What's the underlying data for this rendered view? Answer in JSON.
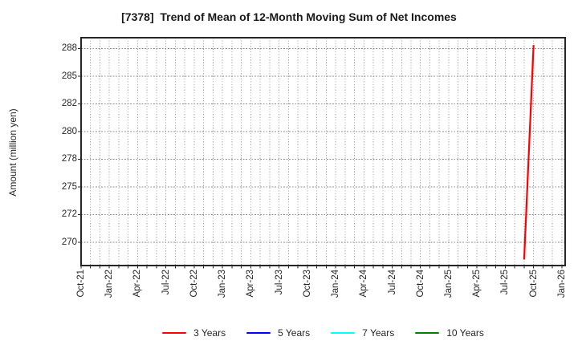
{
  "chart_data": {
    "type": "line",
    "title": "[7378]  Trend of Mean of 12-Month Moving Sum of Net Incomes",
    "ylabel": "Amount (million yen)",
    "x_unit": "months since Oct-21",
    "xlim": [
      0,
      51.35
    ],
    "ylim": [
      267.9,
      288.46
    ],
    "grid": "dotted gray, vertical minor gridline every month, horizontal at each y tick",
    "legend_position": "bottom center",
    "x_ticks": [
      {
        "month": 0,
        "label": "Oct-21"
      },
      {
        "month": 3,
        "label": "Jan-22"
      },
      {
        "month": 6,
        "label": "Apr-22"
      },
      {
        "month": 9,
        "label": "Jul-22"
      },
      {
        "month": 12,
        "label": "Oct-22"
      },
      {
        "month": 15,
        "label": "Jan-23"
      },
      {
        "month": 18,
        "label": "Apr-23"
      },
      {
        "month": 21,
        "label": "Jul-23"
      },
      {
        "month": 24,
        "label": "Oct-23"
      },
      {
        "month": 27,
        "label": "Jan-24"
      },
      {
        "month": 30,
        "label": "Apr-24"
      },
      {
        "month": 33,
        "label": "Jul-24"
      },
      {
        "month": 36,
        "label": "Oct-24"
      },
      {
        "month": 39,
        "label": "Jan-25"
      },
      {
        "month": 42,
        "label": "Apr-25"
      },
      {
        "month": 45,
        "label": "Jul-25"
      },
      {
        "month": 48,
        "label": "Oct-25"
      },
      {
        "month": 51,
        "label": "Jan-26"
      }
    ],
    "y_ticks": [
      {
        "value": 270,
        "label": "270"
      },
      {
        "value": 272.5,
        "label": "272"
      },
      {
        "value": 275,
        "label": "275"
      },
      {
        "value": 277.5,
        "label": "278"
      },
      {
        "value": 280,
        "label": "280"
      },
      {
        "value": 282.5,
        "label": "282"
      },
      {
        "value": 285,
        "label": "285"
      },
      {
        "value": 287.5,
        "label": "288"
      }
    ],
    "series": [
      {
        "name": "3 Years",
        "color": "#ff0000",
        "points": [
          {
            "month": 47,
            "x_label": "Sep-25",
            "value": 268.45
          },
          {
            "month": 48,
            "x_label": "Oct-25",
            "value": 287.8
          }
        ]
      },
      {
        "name": "5 Years",
        "color": "#0000ff",
        "points": []
      },
      {
        "name": "7 Years",
        "color": "#00ffff",
        "points": []
      },
      {
        "name": "10 Years",
        "color": "#008000",
        "points": []
      }
    ],
    "legend": [
      {
        "label": "3 Years",
        "color": "#ff0000"
      },
      {
        "label": "5 Years",
        "color": "#0000ff"
      },
      {
        "label": "7 Years",
        "color": "#00ffff"
      },
      {
        "label": "10 Years",
        "color": "#008000"
      }
    ],
    "colors": {
      "background": "#ffffff",
      "spine": "#262626",
      "grid": "#8f8f8f",
      "text": "#262626"
    }
  }
}
